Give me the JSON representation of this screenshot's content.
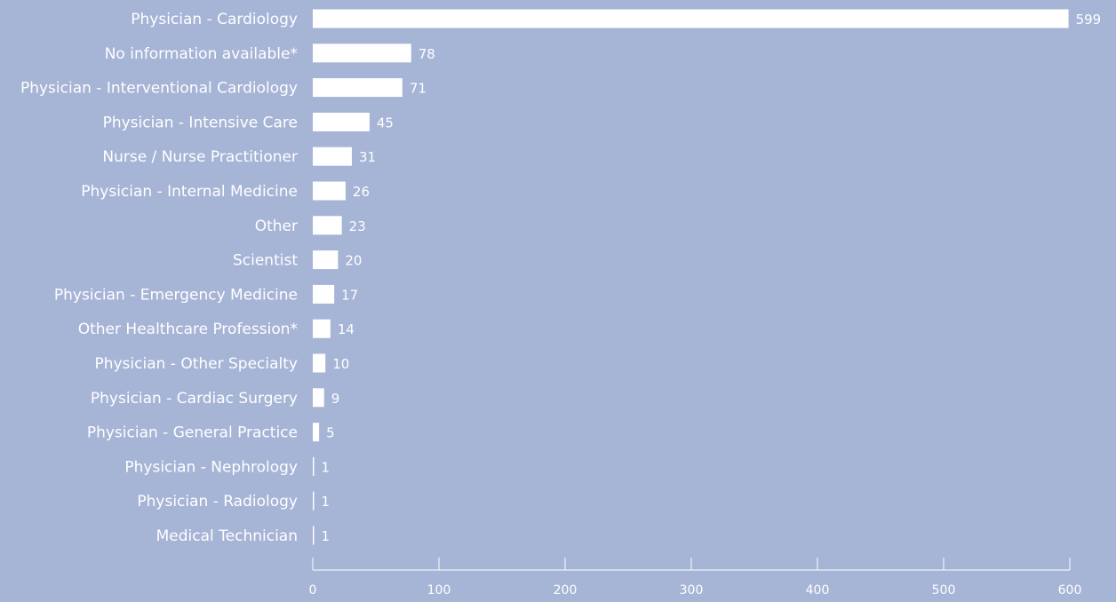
{
  "colors": {
    "background": "#a6b4d6",
    "bar": "#ffffff",
    "text": "#ffffff",
    "axis": "#ffffff"
  },
  "chart_data": {
    "type": "bar",
    "orientation": "horizontal",
    "title": "",
    "xlabel": "",
    "ylabel": "",
    "xlim": [
      0,
      600
    ],
    "grid": false,
    "legend": "none",
    "categories": [
      "Physician - Cardiology",
      "No information available*",
      "Physician - Interventional Cardiology",
      "Physician - Intensive Care",
      "Nurse / Nurse Practitioner",
      "Physician - Internal Medicine",
      "Other",
      "Scientist",
      "Physician - Emergency Medicine",
      "Other Healthcare Profession*",
      "Physician - Other Specialty",
      "Physician - Cardiac Surgery",
      "Physician - General Practice",
      "Physician - Nephrology",
      "Physician - Radiology",
      "Medical Technician"
    ],
    "values": [
      599,
      78,
      71,
      45,
      31,
      26,
      23,
      20,
      17,
      14,
      10,
      9,
      5,
      1,
      1,
      1
    ],
    "value_labels": [
      "599",
      "78",
      "71",
      "45",
      "31",
      "26",
      "23",
      "20",
      "17",
      "14",
      "10",
      "9",
      "5",
      "1",
      "1",
      "1"
    ],
    "x_ticks": [
      0,
      100,
      200,
      300,
      400,
      500,
      600
    ],
    "x_tick_labels": [
      "0",
      "100",
      "200",
      "300",
      "400",
      "500",
      "600"
    ]
  }
}
